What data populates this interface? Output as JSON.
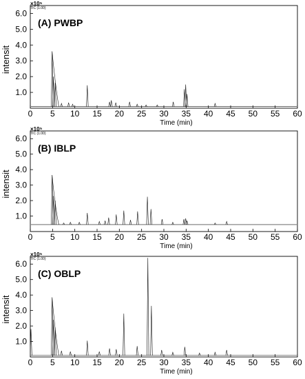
{
  "chart_data": [
    {
      "type": "line",
      "title": "(A) PWBP",
      "scale_note": "×10⁵",
      "detector_note": "TIC (1.00)",
      "xlabel": "Time (min)",
      "ylabel": "intensit",
      "xlim": [
        0,
        60
      ],
      "ylim": [
        0,
        6.5
      ],
      "x_ticks": [
        "0",
        "5",
        "10",
        "15",
        "20",
        "25",
        "30",
        "35",
        "40",
        "45",
        "50",
        "55",
        "60"
      ],
      "y_ticks": [
        "1.0",
        "2.0",
        "3.0",
        "4.0",
        "5.0",
        "6.0"
      ],
      "baseline": 0.1,
      "peaks": [
        [
          4.9,
          3.6
        ],
        [
          5.2,
          2.0
        ],
        [
          5.6,
          1.6
        ],
        [
          7.0,
          0.3
        ],
        [
          8.6,
          0.35
        ],
        [
          9.5,
          0.25
        ],
        [
          12.8,
          1.45
        ],
        [
          17.8,
          0.4
        ],
        [
          18.2,
          0.5
        ],
        [
          19.2,
          0.35
        ],
        [
          22.3,
          0.4
        ],
        [
          24.0,
          0.25
        ],
        [
          26.0,
          0.2
        ],
        [
          28.5,
          0.2
        ],
        [
          32.1,
          0.4
        ],
        [
          34.6,
          1.2
        ],
        [
          34.9,
          1.5
        ],
        [
          35.2,
          0.9
        ],
        [
          41.5,
          0.3
        ]
      ]
    },
    {
      "type": "line",
      "title": "(B) IBLP",
      "scale_note": "×10⁵",
      "detector_note": "TIC (1.00)",
      "xlabel": "Time (min)",
      "ylabel": "intensit",
      "xlim": [
        0,
        60
      ],
      "ylim": [
        0,
        6.5
      ],
      "x_ticks": [
        "0",
        "5",
        "10",
        "15",
        "20",
        "25",
        "30",
        "35",
        "40",
        "45",
        "50",
        "55",
        "60"
      ],
      "y_ticks": [
        "1.0",
        "2.0",
        "3.0",
        "4.0",
        "5.0",
        "6.0"
      ],
      "baseline": 0.45,
      "peaks": [
        [
          4.9,
          3.65
        ],
        [
          5.2,
          2.3
        ],
        [
          5.6,
          2.0
        ],
        [
          7.5,
          0.55
        ],
        [
          9.0,
          0.6
        ],
        [
          11.0,
          0.6
        ],
        [
          12.8,
          1.2
        ],
        [
          15.5,
          0.65
        ],
        [
          16.8,
          0.7
        ],
        [
          17.6,
          0.9
        ],
        [
          19.3,
          1.1
        ],
        [
          21.0,
          1.35
        ],
        [
          22.5,
          0.75
        ],
        [
          24.1,
          1.3
        ],
        [
          26.3,
          2.25
        ],
        [
          27.1,
          1.45
        ],
        [
          29.6,
          0.8
        ],
        [
          32.0,
          0.6
        ],
        [
          34.5,
          0.8
        ],
        [
          34.9,
          0.85
        ],
        [
          35.2,
          0.7
        ],
        [
          41.5,
          0.55
        ],
        [
          44.1,
          0.65
        ]
      ]
    },
    {
      "type": "line",
      "title": "(C) OBLP",
      "scale_note": "×10⁵",
      "detector_note": "TIC (1.00)",
      "xlabel": "Time (min)",
      "ylabel": "intensit",
      "xlim": [
        0,
        60
      ],
      "ylim": [
        0,
        6.5
      ],
      "x_ticks": [
        "0",
        "5",
        "10",
        "15",
        "20",
        "25",
        "30",
        "35",
        "40",
        "45",
        "50",
        "55",
        "60"
      ],
      "y_ticks": [
        "1.0",
        "2.0",
        "3.0",
        "4.0",
        "5.0",
        "6.0"
      ],
      "baseline": 0.1,
      "peaks": [
        [
          0.15,
          1.8
        ],
        [
          4.9,
          3.85
        ],
        [
          5.2,
          2.4
        ],
        [
          5.6,
          1.9
        ],
        [
          7.0,
          0.4
        ],
        [
          9.0,
          0.35
        ],
        [
          12.8,
          1.05
        ],
        [
          15.5,
          0.35
        ],
        [
          17.8,
          0.55
        ],
        [
          19.3,
          0.5
        ],
        [
          21.0,
          2.8
        ],
        [
          24.0,
          0.7
        ],
        [
          26.4,
          6.4
        ],
        [
          27.2,
          3.3
        ],
        [
          29.5,
          0.45
        ],
        [
          32.0,
          0.3
        ],
        [
          34.7,
          0.65
        ],
        [
          38.0,
          0.25
        ],
        [
          41.5,
          0.3
        ],
        [
          44.1,
          0.45
        ]
      ]
    }
  ]
}
